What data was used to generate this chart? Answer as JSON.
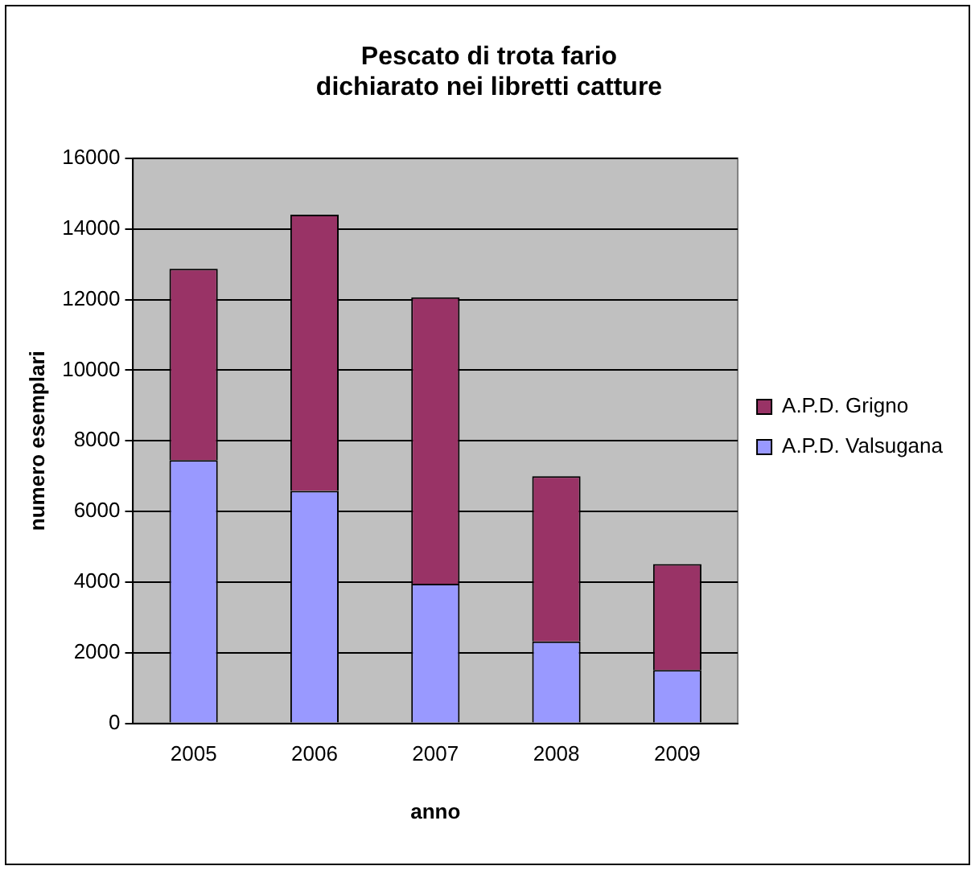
{
  "chart_data": {
    "type": "bar",
    "title": "Pescato di trota fario\ndichiarato nei libretti catture",
    "xlabel": "anno",
    "ylabel": "numero esemplari",
    "categories": [
      "2005",
      "2006",
      "2007",
      "2008",
      "2009"
    ],
    "stacked": true,
    "series": [
      {
        "name": "A.P.D. Valsugana",
        "color": "#9999ff",
        "values": [
          7450,
          6580,
          3950,
          2320,
          1510
        ]
      },
      {
        "name": "A.P.D. Grigno",
        "color": "#993366",
        "values": [
          5420,
          7820,
          8110,
          4680,
          3000
        ]
      }
    ],
    "ylim": [
      0,
      16000
    ],
    "yticks": [
      0,
      2000,
      4000,
      6000,
      8000,
      10000,
      12000,
      14000,
      16000
    ],
    "grid": "y",
    "legend": "right"
  }
}
